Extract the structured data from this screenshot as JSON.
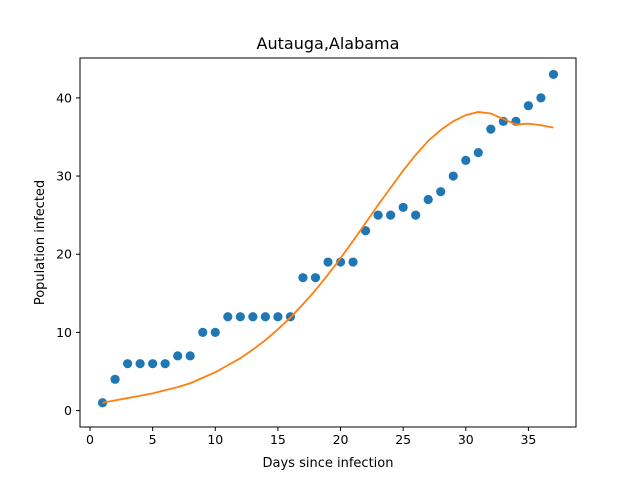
{
  "chart_data": {
    "type": "scatter",
    "title": "Autauga,Alabama",
    "xlabel": "Days since infection",
    "ylabel": "Population infected",
    "xlim": [
      -0.8,
      38.8
    ],
    "ylim": [
      -2.1,
      45.1
    ],
    "xticks": [
      0,
      5,
      10,
      15,
      20,
      25,
      30,
      35
    ],
    "yticks": [
      0,
      10,
      20,
      30,
      40
    ],
    "grid": false,
    "legend": "none",
    "series": [
      {
        "kind": "scatter",
        "color": "#1f77b4",
        "x": [
          1,
          2,
          3,
          4,
          5,
          6,
          7,
          8,
          9,
          10,
          11,
          12,
          13,
          14,
          15,
          16,
          17,
          18,
          19,
          20,
          21,
          22,
          23,
          24,
          25,
          26,
          27,
          28,
          29,
          30,
          31,
          32,
          33,
          34,
          35,
          36,
          37
        ],
        "y": [
          1,
          4,
          6,
          6,
          6,
          6,
          7,
          7,
          10,
          10,
          12,
          12,
          12,
          12,
          12,
          12,
          17,
          17,
          19,
          19,
          19,
          23,
          25,
          25,
          26,
          25,
          27,
          28,
          30,
          32,
          33,
          36,
          37,
          37,
          39,
          40,
          43
        ]
      },
      {
        "kind": "line",
        "color": "#ff7f0e",
        "x": [
          1,
          2,
          3,
          4,
          5,
          6,
          7,
          8,
          9,
          10,
          11,
          12,
          13,
          14,
          15,
          16,
          17,
          18,
          19,
          20,
          21,
          22,
          23,
          24,
          25,
          26,
          27,
          28,
          29,
          30,
          31,
          32,
          33,
          34,
          35,
          36,
          37
        ],
        "y": [
          1.0,
          1.3,
          1.6,
          1.9,
          2.2,
          2.6,
          3.0,
          3.5,
          4.2,
          4.9,
          5.8,
          6.7,
          7.8,
          9.0,
          10.4,
          11.9,
          13.6,
          15.4,
          17.4,
          19.5,
          21.7,
          24.0,
          26.3,
          28.5,
          30.7,
          32.7,
          34.5,
          35.9,
          37.0,
          37.8,
          38.2,
          38.0,
          37.3,
          36.6,
          36.7,
          36.5,
          36.2
        ]
      }
    ]
  }
}
